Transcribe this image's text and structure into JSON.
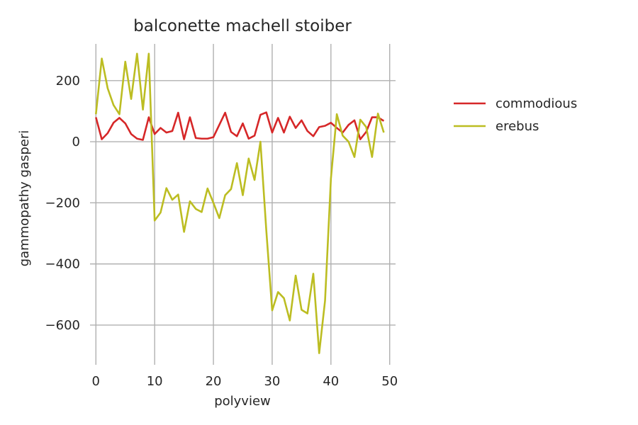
{
  "chart_data": {
    "type": "line",
    "title": "balconette machell stoiber",
    "xlabel": "polyview",
    "ylabel": "gammopathy gasperi",
    "xlim": [
      -1,
      51
    ],
    "ylim": [
      -730,
      320
    ],
    "xticks": [
      0,
      10,
      20,
      30,
      40,
      50
    ],
    "yticks": [
      200,
      0,
      -200,
      -400,
      -600
    ],
    "grid": true,
    "legend_position": "right",
    "x": [
      0,
      1,
      2,
      3,
      4,
      5,
      6,
      7,
      8,
      9,
      10,
      11,
      12,
      13,
      14,
      15,
      16,
      17,
      18,
      19,
      20,
      21,
      22,
      23,
      24,
      25,
      26,
      27,
      28,
      29,
      30,
      31,
      32,
      33,
      34,
      35,
      36,
      37,
      38,
      39,
      40,
      41,
      42,
      43,
      44,
      45,
      46,
      47,
      48,
      49
    ],
    "series": [
      {
        "name": "commodious",
        "color": "#d62728",
        "values": [
          80,
          8,
          28,
          62,
          78,
          60,
          25,
          10,
          6,
          80,
          25,
          45,
          30,
          35,
          95,
          8,
          80,
          12,
          10,
          10,
          15,
          55,
          95,
          32,
          18,
          60,
          10,
          20,
          88,
          96,
          30,
          78,
          30,
          82,
          45,
          70,
          35,
          18,
          48,
          52,
          62,
          45,
          30,
          55,
          70,
          8,
          32,
          80,
          80,
          68
        ]
      },
      {
        "name": "erebus",
        "color": "#bcbd22",
        "values": [
          90,
          272,
          175,
          120,
          90,
          262,
          140,
          288,
          105,
          288,
          -258,
          -232,
          -152,
          -190,
          -173,
          -295,
          -195,
          -220,
          -230,
          -153,
          -200,
          -250,
          -175,
          -155,
          -70,
          -175,
          -55,
          -125,
          0,
          -290,
          -552,
          -492,
          -512,
          -585,
          -438,
          -550,
          -562,
          -432,
          -692,
          -520,
          -120,
          90,
          20,
          0,
          -50,
          72,
          48,
          -50,
          92,
          30
        ]
      }
    ]
  }
}
